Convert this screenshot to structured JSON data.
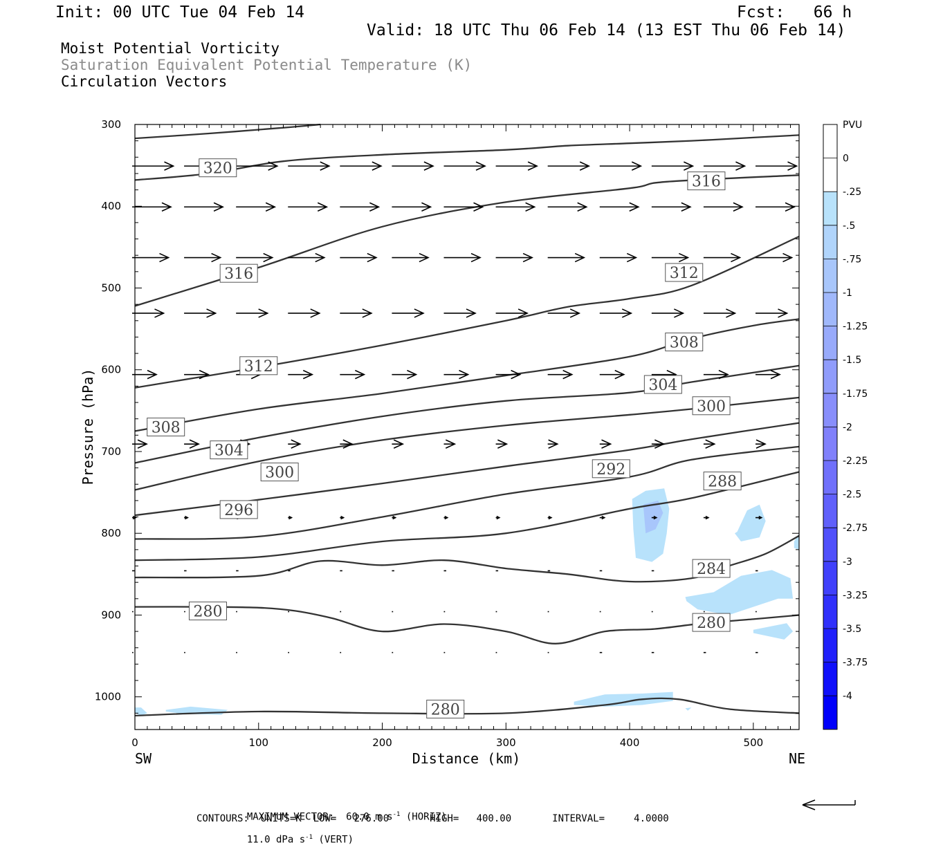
{
  "header": {
    "init": "Init: 00 UTC Tue 04 Feb 14",
    "fcst": "Fcst:   66 h",
    "valid": "Valid: 18 UTC Thu 06 Feb 14 (13 EST Thu 06 Feb 14)"
  },
  "titles": {
    "line1": "Moist Potential Vorticity",
    "line2": "Saturation Equivalent Potential Temperature (K)",
    "line3": "Circulation Vectors"
  },
  "axes": {
    "ylabel": "Pressure (hPa)",
    "xlabel": "Distance (km)",
    "left_end": "SW",
    "right_end": "NE"
  },
  "colorbar": {
    "title": "PVU",
    "labels": [
      "0",
      "-.25",
      "-.5",
      "-.75",
      "-1",
      "-1.25",
      "-1.5",
      "-1.75",
      "-2",
      "-2.25",
      "-2.5",
      "-2.75",
      "-3",
      "-3.25",
      "-3.5",
      "-3.75",
      "-4"
    ],
    "colors": [
      "#ffffff",
      "#ffffff",
      "#b8e2fb",
      "#b0d4fb",
      "#a8c6fb",
      "#a0b8fb",
      "#98aafb",
      "#909cfb",
      "#888efb",
      "#8080fb",
      "#7070fb",
      "#6060fb",
      "#5050fb",
      "#4040fb",
      "#3030fb",
      "#2020fb",
      "#1010fb",
      "#0000fb"
    ]
  },
  "footer": {
    "max_vector": "MAXIMUM VECTOR:  60.0 m s",
    "max_vector_exp": "-1",
    "horiz": " (HORIZ)",
    "vert_val": "11.0 dPa s",
    "vert_exp": "-1",
    "vert": " (VERT)",
    "contours": "CONTOURS:  UNITS=K  LOW=   276.00       HIGH=   400.00       INTERVAL=     4.0000"
  },
  "chart_data": {
    "type": "cross-section contour",
    "xlabel": "Distance (km)",
    "ylabel": "Pressure (hPa)",
    "xlim": [
      0,
      537
    ],
    "ylim": [
      300,
      1040
    ],
    "x_ticks": [
      0,
      100,
      200,
      300,
      400,
      500
    ],
    "y_ticks": [
      300,
      400,
      500,
      600,
      700,
      800,
      900,
      1000
    ],
    "contours": [
      {
        "x": [
          0,
          60,
          120,
          150
        ],
        "p": [
          317,
          311,
          304,
          300
        ]
      },
      {
        "x": [
          0,
          60,
          120,
          200,
          300,
          350,
          400,
          450,
          500,
          537
        ],
        "p": [
          368,
          360,
          345,
          337,
          331,
          326,
          323,
          320,
          316,
          313
        ]
      },
      {
        "x": [
          0,
          100,
          200,
          300,
          400,
          430,
          537
        ],
        "p": [
          522,
          475,
          425,
          395,
          378,
          370,
          362
        ],
        "label": "316"
      },
      {
        "x": [
          0,
          100,
          200,
          300,
          350,
          400,
          450,
          537
        ],
        "p": [
          622,
          597,
          570,
          540,
          523,
          513,
          497,
          437
        ],
        "label": "312"
      },
      {
        "x": [
          0,
          100,
          200,
          300,
          400,
          450,
          500,
          537
        ],
        "p": [
          675,
          648,
          629,
          607,
          584,
          562,
          546,
          538
        ],
        "label": "308"
      },
      {
        "x": [
          0,
          100,
          200,
          300,
          400,
          450,
          537
        ],
        "p": [
          714,
          683,
          657,
          638,
          628,
          615,
          595
        ],
        "label": "304"
      },
      {
        "x": [
          0,
          100,
          200,
          300,
          400,
          450,
          537
        ],
        "p": [
          747,
          712,
          686,
          668,
          655,
          648,
          634
        ],
        "label": "300"
      },
      {
        "x": [
          0,
          100,
          200,
          300,
          400,
          450,
          537
        ],
        "p": [
          778,
          759,
          739,
          718,
          698,
          685,
          665
        ],
        "label": "296"
      },
      {
        "x": [
          0,
          100,
          200,
          300,
          400,
          450,
          537
        ],
        "p": [
          807,
          804,
          780,
          752,
          731,
          710,
          694
        ],
        "label": "292"
      },
      {
        "x": [
          0,
          100,
          200,
          300,
          400,
          450,
          537
        ],
        "p": [
          833,
          829,
          810,
          800,
          770,
          757,
          725
        ],
        "label": "288"
      },
      {
        "x": [
          0,
          100,
          150,
          200,
          250,
          300,
          350,
          400,
          450,
          480,
          510,
          537
        ],
        "p": [
          854,
          852,
          834,
          839,
          833,
          843,
          850,
          859,
          855,
          840,
          825,
          803
        ],
        "label": "284"
      },
      {
        "x": [
          0,
          50,
          100,
          130,
          160,
          200,
          250,
          300,
          340,
          380,
          420,
          460,
          500,
          537
        ],
        "p": [
          890,
          890,
          891,
          895,
          904,
          920,
          911,
          920,
          935,
          920,
          917,
          910,
          905,
          900
        ],
        "label": "280"
      },
      {
        "x": [
          0,
          100,
          200,
          300,
          380,
          410,
          440,
          480,
          537
        ],
        "p": [
          1023,
          1018,
          1020,
          1020,
          1010,
          1003,
          1003,
          1015,
          1020
        ],
        "label": "280"
      }
    ],
    "contour_labels": [
      {
        "text": "320",
        "x": 67,
        "p": 353
      },
      {
        "text": "316",
        "x": 462,
        "p": 369
      },
      {
        "text": "316",
        "x": 84,
        "p": 482
      },
      {
        "text": "312",
        "x": 444,
        "p": 481
      },
      {
        "text": "308",
        "x": 444,
        "p": 566
      },
      {
        "text": "312",
        "x": 100,
        "p": 595
      },
      {
        "text": "304",
        "x": 427,
        "p": 618
      },
      {
        "text": "300",
        "x": 466,
        "p": 644
      },
      {
        "text": "308",
        "x": 25,
        "p": 670
      },
      {
        "text": "304",
        "x": 76,
        "p": 698
      },
      {
        "text": "300",
        "x": 117,
        "p": 725
      },
      {
        "text": "292",
        "x": 385,
        "p": 721
      },
      {
        "text": "288",
        "x": 475,
        "p": 736
      },
      {
        "text": "296",
        "x": 84,
        "p": 771
      },
      {
        "text": "284",
        "x": 466,
        "p": 843
      },
      {
        "text": "280",
        "x": 59,
        "p": 895
      },
      {
        "text": "280",
        "x": 466,
        "p": 909
      },
      {
        "text": "280",
        "x": 251,
        "p": 1015
      }
    ],
    "mpv_shading": [
      {
        "class": "-.25 to -.5",
        "x": [
          402,
          413,
          428,
          432,
          430,
          427,
          418,
          405,
          403
        ],
        "p": [
          758,
          748,
          745,
          770,
          800,
          825,
          835,
          830,
          795
        ]
      },
      {
        "class": "-.5 to -.75",
        "x": [
          411,
          423,
          427,
          421,
          413
        ],
        "p": [
          765,
          760,
          775,
          795,
          800
        ]
      },
      {
        "class": "-.25 to -.5",
        "x": [
          487,
          495,
          505,
          510,
          505,
          490,
          485
        ],
        "p": [
          798,
          772,
          765,
          785,
          805,
          810,
          800
        ]
      },
      {
        "class": "-.25 to -.5",
        "x": [
          445,
          468,
          490,
          515,
          530,
          532,
          520,
          500,
          480,
          455,
          446
        ],
        "p": [
          878,
          872,
          852,
          845,
          855,
          880,
          880,
          890,
          900,
          893,
          883
        ]
      },
      {
        "class": "-.25 to -.5",
        "x": [
          500,
          527,
          532,
          525,
          500
        ],
        "p": [
          918,
          910,
          920,
          930,
          922
        ]
      },
      {
        "class": "-.25 to -.5",
        "x": [
          533,
          537,
          537,
          533
        ],
        "p": [
          810,
          800,
          820,
          818
        ]
      },
      {
        "class": "-.25 to -.5",
        "x": [
          355,
          380,
          410,
          435,
          435,
          410,
          380,
          355
        ],
        "p": [
          1006,
          997,
          996,
          994,
          1005,
          1010,
          1012,
          1010
        ]
      },
      {
        "class": "-.25 to -.5",
        "x": [
          0,
          5,
          10,
          5,
          0
        ],
        "p": [
          1013,
          1013,
          1020,
          1023,
          1020
        ]
      },
      {
        "class": "-.25 to -.5",
        "x": [
          25,
          45,
          75,
          70,
          40,
          25
        ],
        "p": [
          1016,
          1012,
          1016,
          1022,
          1021,
          1018
        ]
      },
      {
        "class": "-.25 to -.5",
        "x": [
          445,
          450,
          447
        ],
        "p": [
          1014,
          1013,
          1017
        ]
      }
    ],
    "vector_levels_hPa": [
      350,
      400,
      462,
      530,
      605,
      690,
      780,
      845,
      895,
      945
    ],
    "vector_x_km": [
      0,
      42,
      84,
      126,
      168,
      210,
      252,
      294,
      336,
      378,
      420,
      462,
      504
    ],
    "vector_rows_u": [
      [
        34,
        34,
        34,
        34,
        34,
        34,
        34,
        34,
        34,
        34,
        34,
        34,
        34
      ],
      [
        32,
        32,
        32,
        32,
        32,
        32,
        32,
        32,
        32,
        32,
        32,
        32,
        32
      ],
      [
        30,
        30,
        30,
        30,
        30,
        30,
        30,
        30,
        30,
        30,
        30,
        30,
        30
      ],
      [
        26,
        26,
        26,
        26,
        26,
        26,
        26,
        26,
        26,
        26,
        26,
        26,
        26
      ],
      [
        20,
        20,
        20,
        20,
        20,
        20,
        20,
        20,
        20,
        20,
        20,
        20,
        20
      ],
      [
        12,
        12,
        11,
        10,
        10,
        9,
        9,
        9,
        8,
        9,
        10,
        9,
        8
      ],
      [
        3,
        3,
        3,
        3,
        3,
        3,
        3,
        3,
        3,
        4,
        4,
        4,
        5
      ],
      [
        2,
        2,
        2,
        2,
        2,
        2,
        2,
        2,
        2,
        2,
        2,
        2,
        2
      ],
      [
        1,
        1,
        1,
        1,
        1,
        1,
        1,
        1,
        1,
        1,
        1,
        1,
        1
      ],
      [
        1,
        1,
        1,
        1,
        1,
        1,
        1,
        1,
        1,
        2,
        2,
        2,
        2
      ]
    ]
  }
}
